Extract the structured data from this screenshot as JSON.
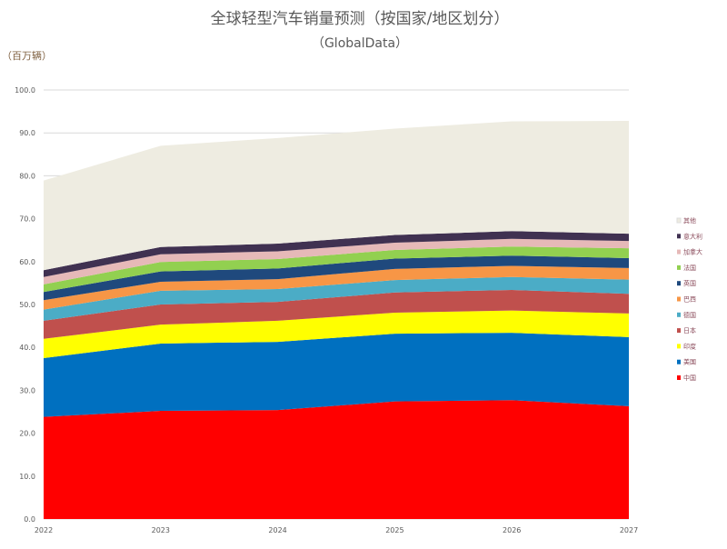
{
  "chart_data": {
    "type": "area",
    "stacked": true,
    "title": "全球轻型汽车销量预测（按国家/地区划分）",
    "subtitle": "（GlobalData）",
    "ylabel": "（百万辆）",
    "xlabel": "",
    "x": [
      "2022",
      "2023",
      "2024",
      "2025",
      "2026",
      "2027"
    ],
    "ylim": [
      0,
      100
    ],
    "yticks": [
      "0.0",
      "10.0",
      "20.0",
      "30.0",
      "40.0",
      "50.0",
      "60.0",
      "70.0",
      "80.0",
      "90.0",
      "100.0"
    ],
    "grid": true,
    "legend_position": "right",
    "series": [
      {
        "name": "中国",
        "color": "#ff0000",
        "values": [
          23.8,
          25.2,
          25.4,
          27.4,
          27.7,
          26.3
        ]
      },
      {
        "name": "美国",
        "color": "#0070c0",
        "values": [
          13.7,
          15.7,
          15.9,
          15.8,
          15.7,
          16.1
        ]
      },
      {
        "name": "印度",
        "color": "#ffff00",
        "values": [
          4.5,
          4.4,
          4.9,
          4.9,
          5.2,
          5.5
        ]
      },
      {
        "name": "日本",
        "color": "#c0504d",
        "values": [
          4.2,
          4.7,
          4.4,
          4.7,
          4.8,
          4.6
        ]
      },
      {
        "name": "德国",
        "color": "#4bacc6",
        "values": [
          2.6,
          3.2,
          3.0,
          2.9,
          3.0,
          3.3
        ]
      },
      {
        "name": "巴西",
        "color": "#f79646",
        "values": [
          2.2,
          2.1,
          2.3,
          2.6,
          2.6,
          2.7
        ]
      },
      {
        "name": "英国",
        "color": "#1f497d",
        "values": [
          1.9,
          2.4,
          2.5,
          2.4,
          2.4,
          2.3
        ]
      },
      {
        "name": "法国",
        "color": "#92d050",
        "values": [
          1.8,
          2.2,
          2.2,
          2.0,
          2.1,
          2.3
        ]
      },
      {
        "name": "加拿大",
        "color": "#e6b9b8",
        "values": [
          1.7,
          1.8,
          1.8,
          1.7,
          1.8,
          1.7
        ]
      },
      {
        "name": "意大利",
        "color": "#403151",
        "values": [
          1.6,
          1.7,
          1.8,
          1.8,
          1.8,
          1.7
        ]
      },
      {
        "name": "其他",
        "color": "#eeece1",
        "values": [
          20.9,
          23.6,
          24.6,
          24.8,
          25.6,
          26.3
        ]
      }
    ]
  }
}
